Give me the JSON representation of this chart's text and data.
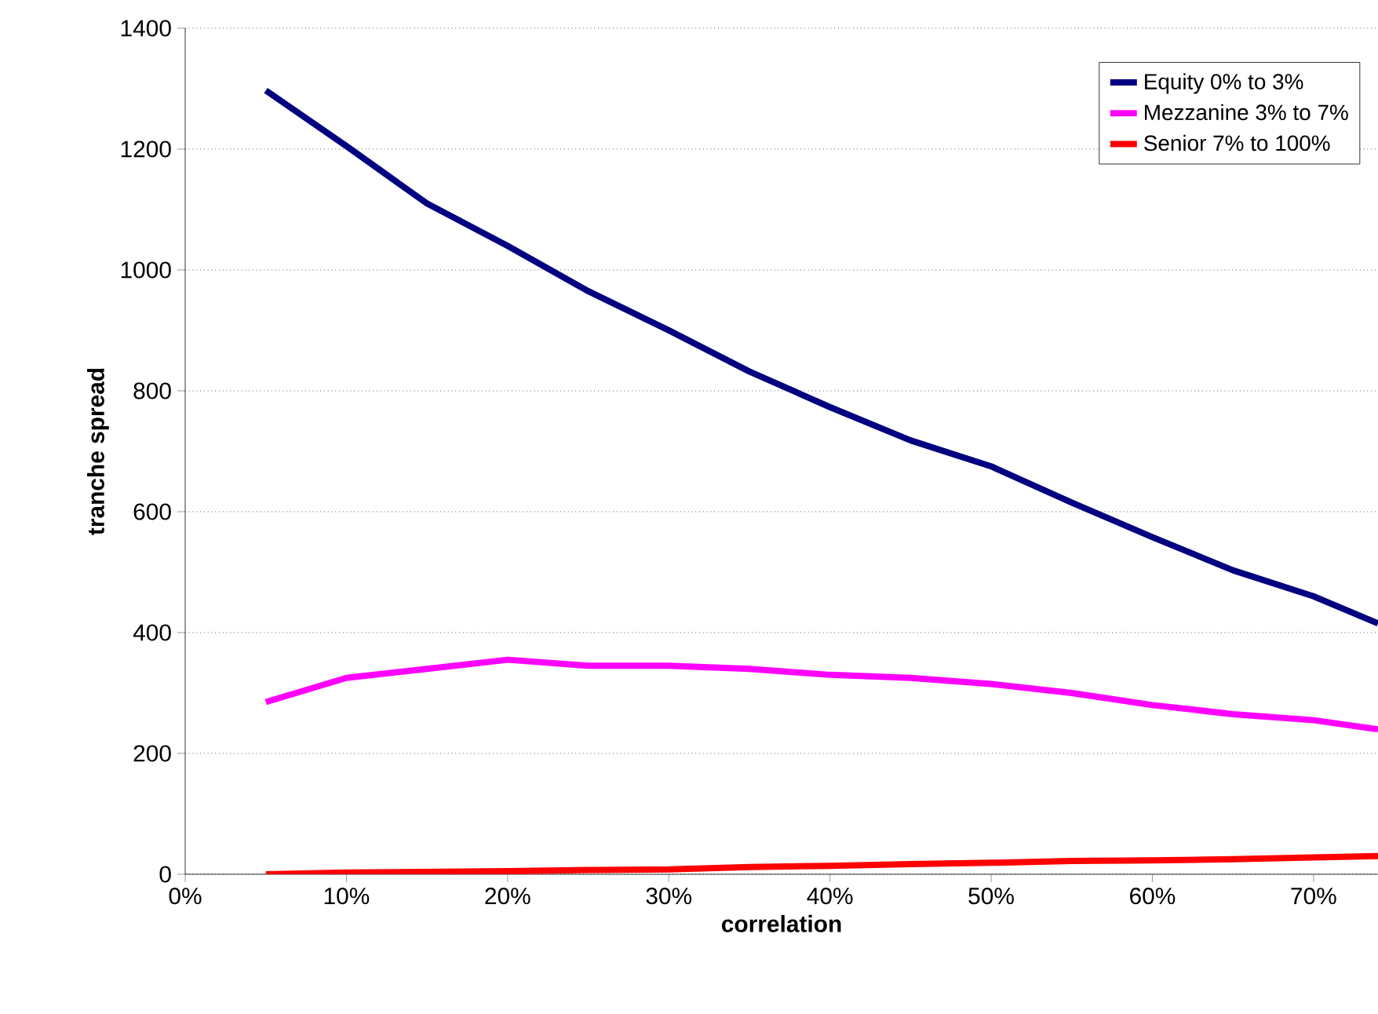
{
  "chart_data": {
    "type": "line",
    "xlabel": "correlation",
    "ylabel": "tranche spread",
    "x": [
      5,
      10,
      15,
      20,
      25,
      30,
      35,
      40,
      45,
      50,
      55,
      60,
      65,
      70,
      74
    ],
    "series": [
      {
        "name": "Equity 0% to 3%",
        "color": "#000080",
        "values": [
          1297,
          1205,
          1110,
          1040,
          965,
          900,
          832,
          773,
          718,
          675,
          615,
          558,
          503,
          460,
          415
        ]
      },
      {
        "name": "Mezzanine 3% to 7%",
        "color": "#ff00ff",
        "values": [
          285,
          325,
          340,
          355,
          345,
          345,
          340,
          330,
          325,
          315,
          300,
          280,
          265,
          255,
          240
        ]
      },
      {
        "name": "Senior 7% to 100%",
        "color": "#ff0000",
        "values": [
          0,
          3,
          4,
          5,
          7,
          8,
          12,
          14,
          17,
          19,
          22,
          23,
          25,
          28,
          30
        ]
      }
    ],
    "xlim": [
      0,
      74
    ],
    "xticks": [
      {
        "value": 0,
        "label": "0%"
      },
      {
        "value": 10,
        "label": "10%"
      },
      {
        "value": 20,
        "label": "20%"
      },
      {
        "value": 30,
        "label": "30%"
      },
      {
        "value": 40,
        "label": "40%"
      },
      {
        "value": 50,
        "label": "50%"
      },
      {
        "value": 60,
        "label": "60%"
      },
      {
        "value": 70,
        "label": "70%"
      }
    ],
    "ylim": [
      0,
      1400
    ],
    "yticks": [
      0,
      200,
      400,
      600,
      800,
      1000,
      1200,
      1400
    ],
    "grid": "y",
    "legend": "top right",
    "marker": "none",
    "line_style": "solid"
  }
}
